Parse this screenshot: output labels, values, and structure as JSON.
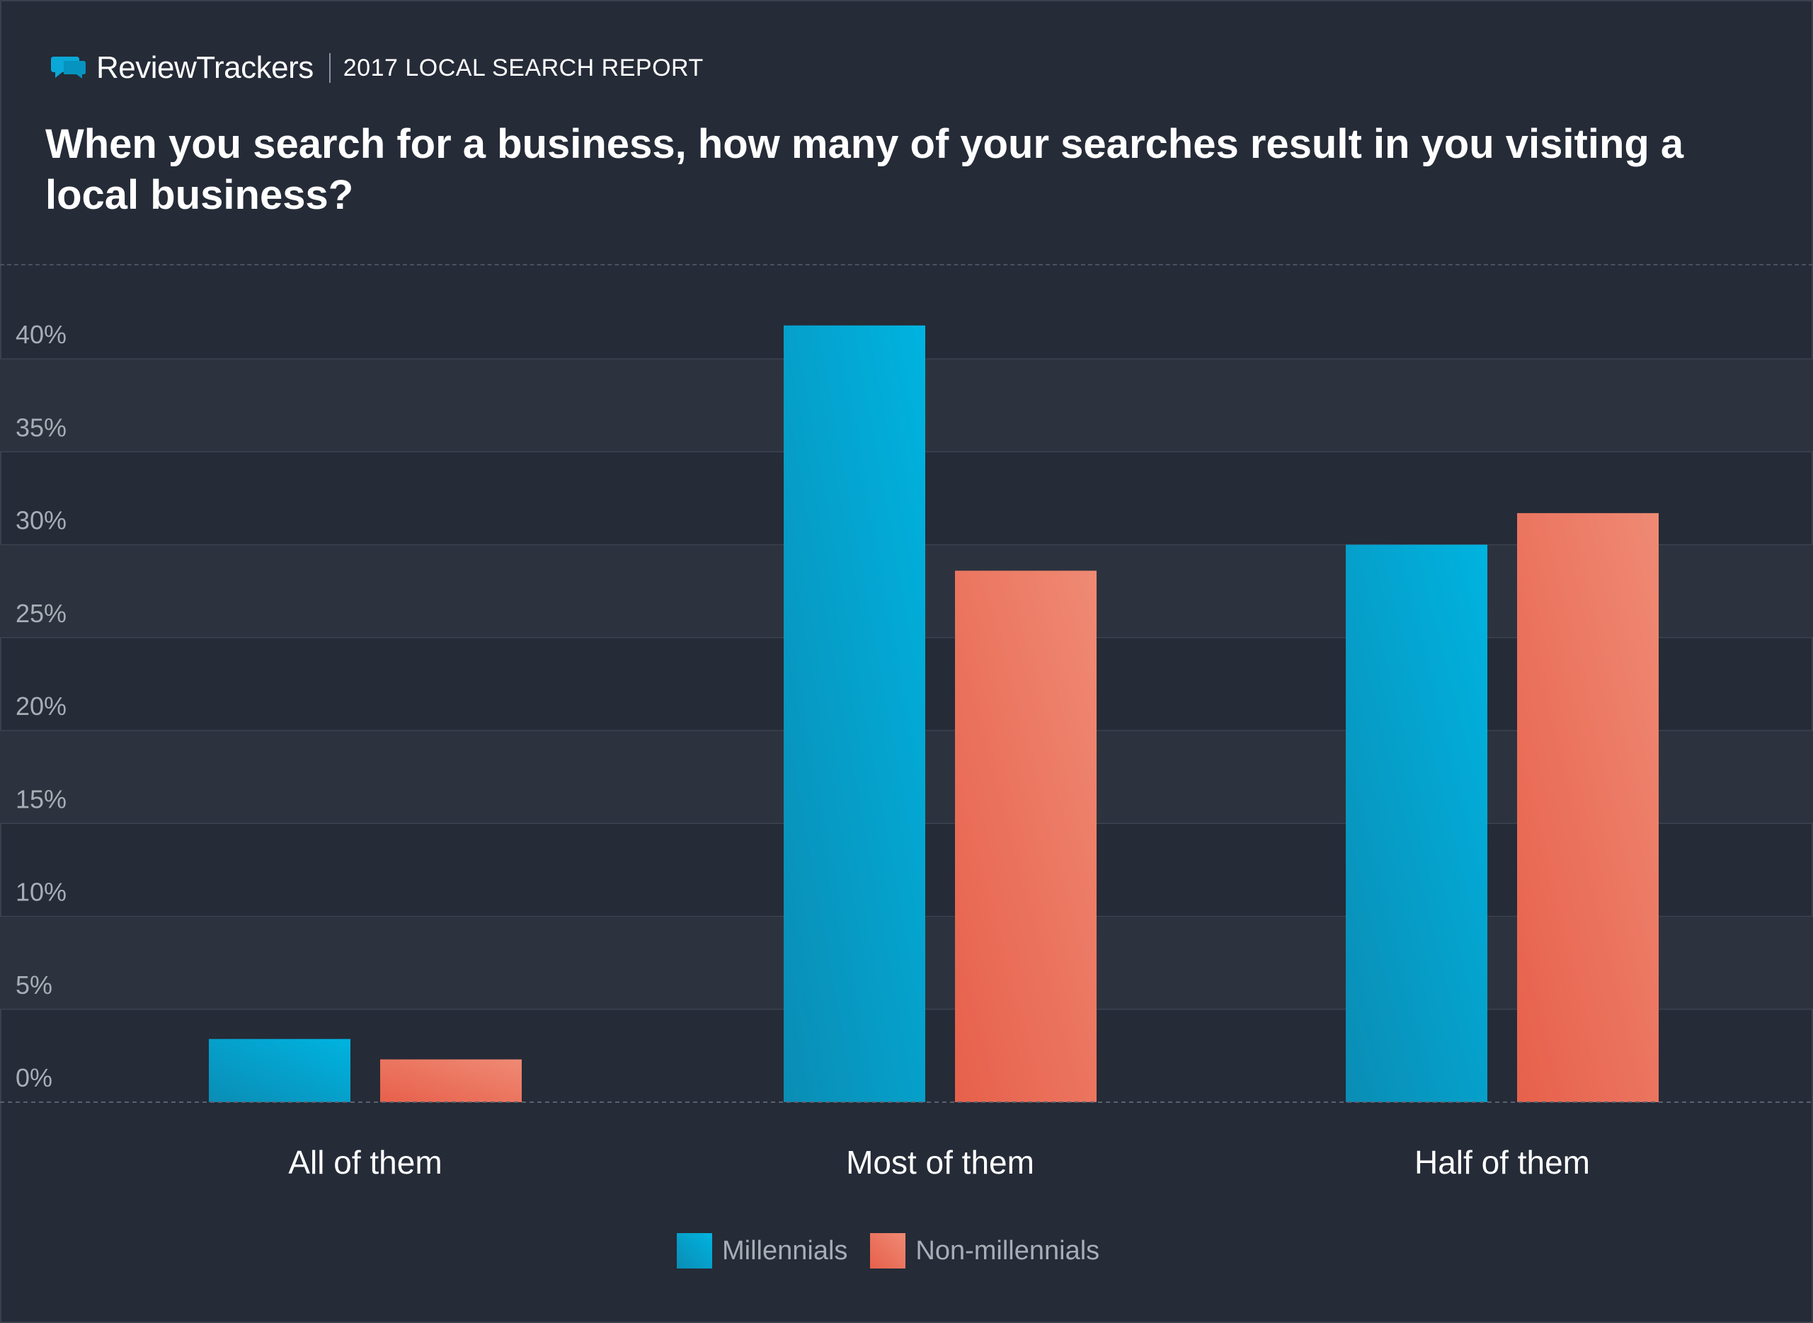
{
  "header": {
    "brand_name": "ReviewTrackers",
    "report_label": "2017 LOCAL SEARCH REPORT"
  },
  "chart_data": {
    "type": "bar",
    "title": "When you search for a business, how many of your searches result in you visiting a local business?",
    "xlabel": "",
    "ylabel": "",
    "ylim": [
      0,
      40
    ],
    "yticks": [
      "0%",
      "5%",
      "10%",
      "15%",
      "20%",
      "25%",
      "30%",
      "35%",
      "40%"
    ],
    "categories": [
      "All of them",
      "Most of them",
      "Half of them"
    ],
    "series": [
      {
        "name": "Millennials",
        "values": [
          3.4,
          41.8,
          30.0
        ]
      },
      {
        "name": "Non-millennials",
        "values": [
          2.3,
          28.6,
          31.7
        ]
      }
    ],
    "grid": true,
    "legend_position": "bottom-center"
  },
  "colors": {
    "background": "#252b37",
    "band": "#2d333e",
    "millennials": "#0aa8d6",
    "non_millennials": "#ea6f5b",
    "tick_label": "#a8adb6"
  }
}
